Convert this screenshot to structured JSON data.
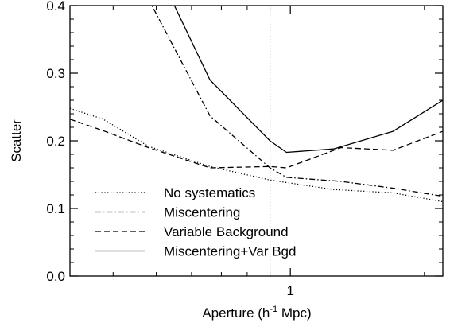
{
  "chart_data": {
    "type": "line",
    "title": "",
    "xlabel": "Aperture (h",
    "xlabel_sup": "-1",
    "xlabel_end": " Mpc)",
    "ylabel": "Scatter",
    "xscale": "log",
    "xlim": [
      0.32,
      2.2
    ],
    "ylim": [
      0.0,
      0.4
    ],
    "grid": false,
    "legend_position": "bottom-left",
    "yticks": [
      0.0,
      0.1,
      0.2,
      0.3,
      0.4
    ],
    "ytick_labels": [
      "0.0",
      "0.1",
      "0.2",
      "0.3",
      "0.4"
    ],
    "xtick_major": [
      1.0
    ],
    "xtick_labels": [
      "1"
    ],
    "xtick_minor": [
      0.4,
      0.5,
      0.6,
      0.7,
      0.8,
      0.9,
      2.0
    ],
    "vline": {
      "x": 0.9,
      "style": "dotted"
    },
    "series": [
      {
        "name": "No systematics",
        "style": "dotted",
        "points": [
          [
            0.32,
            0.248
          ],
          [
            0.38,
            0.232
          ],
          [
            0.48,
            0.192
          ],
          [
            0.66,
            0.162
          ],
          [
            0.9,
            0.142
          ],
          [
            1.25,
            0.128
          ],
          [
            1.7,
            0.123
          ],
          [
            2.2,
            0.11
          ]
        ]
      },
      {
        "name": "Miscentering",
        "style": "dashdot",
        "points": [
          [
            0.48,
            0.41
          ],
          [
            0.66,
            0.237
          ],
          [
            0.9,
            0.16
          ],
          [
            0.98,
            0.146
          ],
          [
            1.3,
            0.14
          ],
          [
            1.7,
            0.13
          ],
          [
            2.2,
            0.118
          ]
        ]
      },
      {
        "name": "Variable Background",
        "style": "dashed",
        "points": [
          [
            0.32,
            0.232
          ],
          [
            0.38,
            0.215
          ],
          [
            0.48,
            0.19
          ],
          [
            0.66,
            0.16
          ],
          [
            0.9,
            0.162
          ],
          [
            0.98,
            0.16
          ],
          [
            1.3,
            0.19
          ],
          [
            1.7,
            0.186
          ],
          [
            2.2,
            0.214
          ]
        ]
      },
      {
        "name": "Miscentering+Var Bgd",
        "style": "solid",
        "points": [
          [
            0.54,
            0.41
          ],
          [
            0.66,
            0.29
          ],
          [
            0.9,
            0.2
          ],
          [
            0.98,
            0.183
          ],
          [
            1.25,
            0.188
          ],
          [
            1.7,
            0.214
          ],
          [
            2.2,
            0.26
          ]
        ]
      }
    ]
  }
}
